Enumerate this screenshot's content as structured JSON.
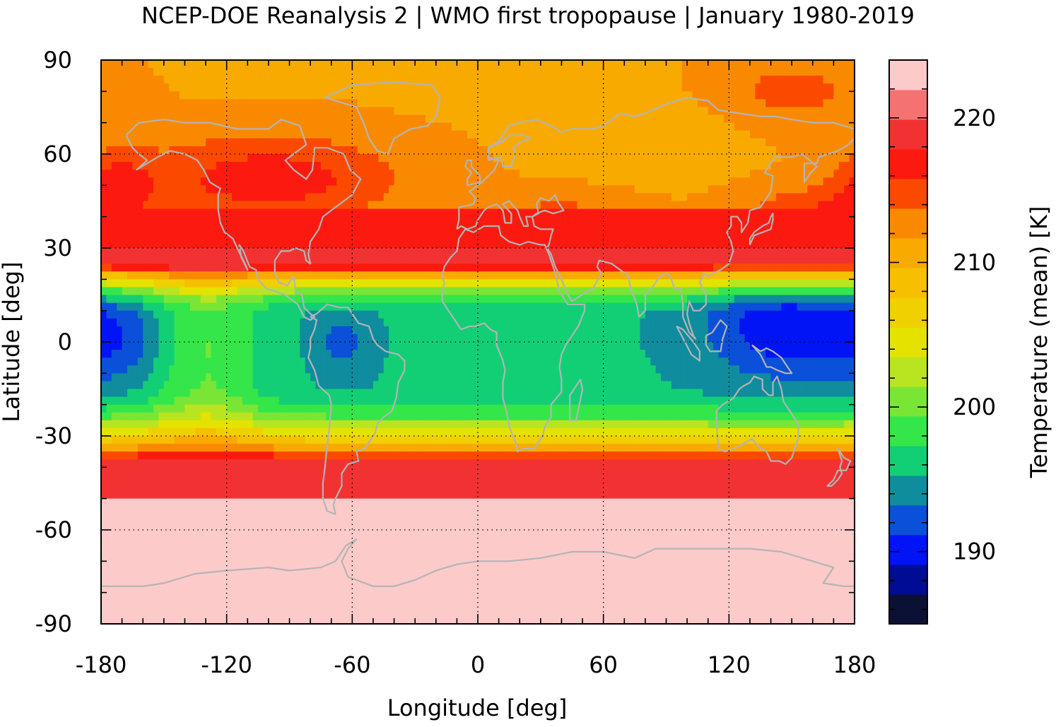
{
  "chart_data": {
    "type": "heatmap",
    "title": "NCEP-DOE Reanalysis 2 | WMO first tropopause | January 1980-2019",
    "xlabel": "Longitude [deg]",
    "ylabel": "Latitude [deg]",
    "colorbar_label": "Temperature (mean) [K]",
    "xlim": [
      -180,
      180
    ],
    "ylim": [
      -90,
      90
    ],
    "x_ticks": [
      -180,
      -120,
      -60,
      0,
      60,
      120,
      180
    ],
    "y_ticks": [
      -90,
      -60,
      -30,
      0,
      30,
      60,
      90
    ],
    "grid": true,
    "clim": [
      185,
      224
    ],
    "colorbar_ticks": [
      190,
      200,
      210,
      220
    ],
    "colorbar_colors": [
      "#0b1035",
      "#000c94",
      "#0014f5",
      "#0a50d8",
      "#0f8c9e",
      "#12cf75",
      "#34e64a",
      "#7ae535",
      "#b9e520",
      "#e5e200",
      "#f0d000",
      "#f6bf00",
      "#f8aa00",
      "#f98a00",
      "#fb4a00",
      "#fc1a10",
      "#f23232",
      "#f57272",
      "#fdcaca"
    ],
    "coastline_color": "#b4b4b4",
    "lon_step": 2.5,
    "lat_step": 2.5
  }
}
